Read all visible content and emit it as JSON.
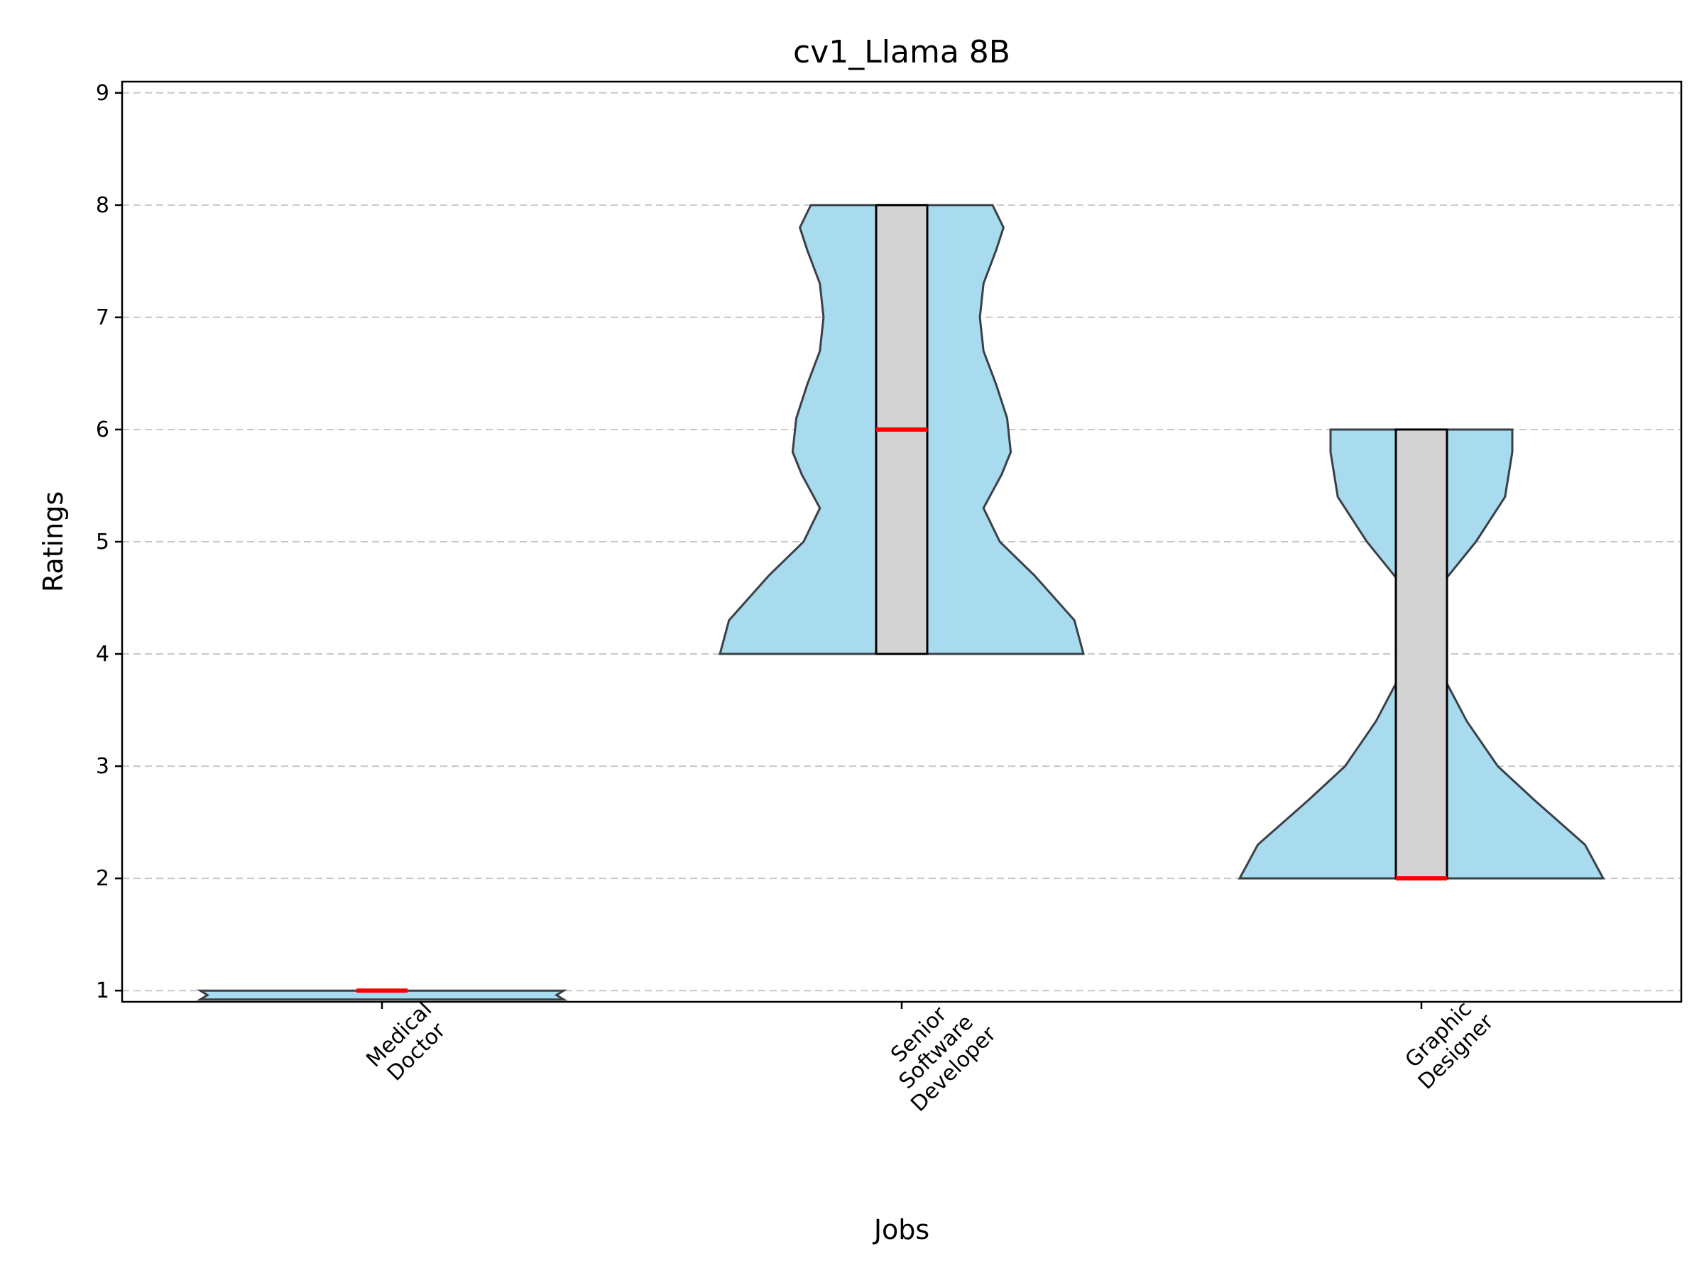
{
  "chart_data": {
    "type": "violin",
    "title": "cv1_Llama 8B",
    "xlabel": "Jobs",
    "ylabel": "Ratings",
    "ylim": [
      0.9,
      9.1
    ],
    "yticks": [
      1,
      2,
      3,
      4,
      5,
      6,
      7,
      8,
      9
    ],
    "grid": "y-dashed",
    "colors": {
      "violin": "#a8dbee",
      "box": "#d3d3d3",
      "median": "#ff0000"
    },
    "categories": [
      {
        "label_lines": [
          "Medical",
          "Doctor"
        ],
        "min": 1,
        "q1": 1,
        "median": 1,
        "q3": 1,
        "max": 1
      },
      {
        "label_lines": [
          "Senior",
          "Software",
          "Developer"
        ],
        "min": 4,
        "q1": 4,
        "median": 6,
        "q3": 8,
        "max": 8
      },
      {
        "label_lines": [
          "Graphic",
          "Designer"
        ],
        "min": 2,
        "q1": 2,
        "median": 2,
        "q3": 6,
        "max": 6
      }
    ]
  }
}
